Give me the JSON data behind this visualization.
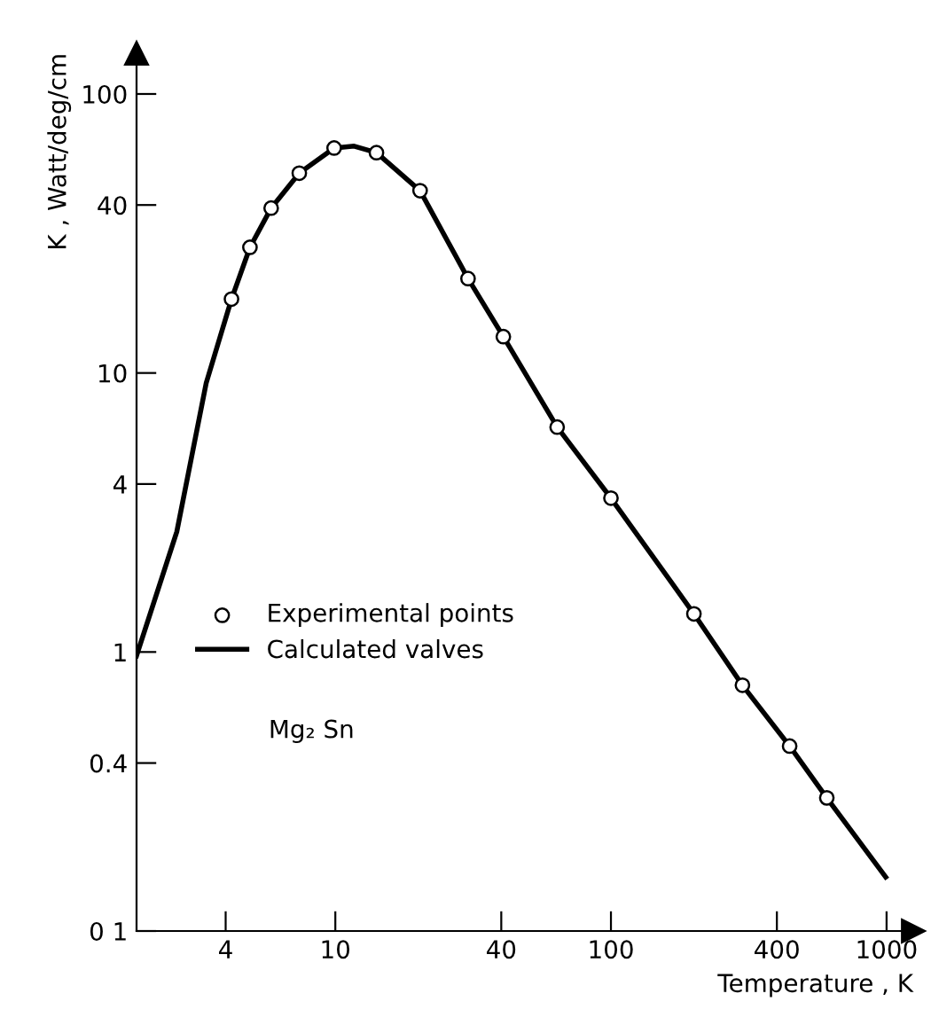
{
  "chart_data": {
    "type": "line",
    "xlabel": "Temperature , K",
    "ylabel": "K , Watt/deg/cm",
    "log": "xy",
    "xlim": [
      1.9,
      1250
    ],
    "ylim": [
      0.1,
      140
    ],
    "xticks": [
      4,
      10,
      40,
      100,
      400,
      1000
    ],
    "yticks": [
      {
        "value": 0.1,
        "label": "0 1"
      },
      0.4,
      1,
      4,
      10,
      40,
      100
    ],
    "grid": false,
    "legend": "bottom left",
    "annotations": [
      "Mg₂ Sn"
    ],
    "series": [
      {
        "name": "Experimental points",
        "type": "scatter",
        "marker": "circle",
        "color": "#000000",
        "x": [
          4.2,
          4.9,
          5.85,
          7.4,
          9.9,
          14.1,
          20.3,
          30.3,
          40.7,
          63.8,
          100,
          200,
          300,
          445,
          607
        ],
        "values": [
          18.4,
          28.2,
          39,
          52,
          64,
          61.6,
          45,
          21.8,
          13.5,
          6.4,
          3.56,
          1.37,
          0.76,
          0.46,
          0.3
        ]
      },
      {
        "name": "Calculated valves",
        "color": "#000000",
        "x": [
          1.9,
          2.66,
          3.4,
          4.2,
          4.9,
          5.85,
          7.4,
          9.9,
          11.7,
          14.1,
          20.3,
          30.3,
          40.7,
          63.8,
          100,
          200,
          300,
          445,
          607,
          993
        ],
        "values": [
          0.97,
          2.7,
          9.2,
          18.4,
          28.2,
          39,
          52,
          64,
          65,
          61.6,
          45,
          21.8,
          13.5,
          6.4,
          3.56,
          1.37,
          0.76,
          0.46,
          0.3,
          0.156
        ]
      }
    ]
  }
}
